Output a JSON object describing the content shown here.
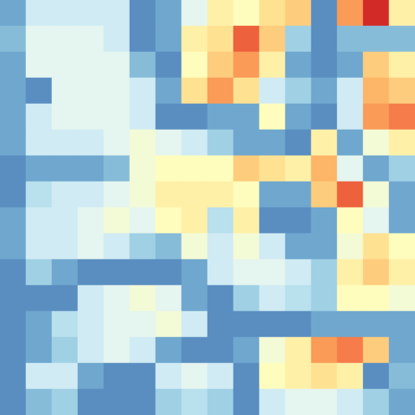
{
  "chart_data": {
    "type": "heatmap",
    "tick_labels": false,
    "grid": false,
    "color_range": [
      0,
      1
    ],
    "cells": [
      [
        0.1,
        0.3,
        0.3,
        0.3,
        0.3,
        0.05,
        0.1,
        0.35,
        0.5,
        0.45,
        0.55,
        0.6,
        0.05,
        0.7,
        0.9,
        0.5
      ],
      [
        0.15,
        0.35,
        0.35,
        0.35,
        0.3,
        0.05,
        0.1,
        0.5,
        0.55,
        0.8,
        0.6,
        0.2,
        0.05,
        0.15,
        0.15,
        0.15
      ],
      [
        0.1,
        0.35,
        0.35,
        0.35,
        0.35,
        0.15,
        0.05,
        0.45,
        0.6,
        0.7,
        0.5,
        0.1,
        0.05,
        0.1,
        0.6,
        0.5
      ],
      [
        0.1,
        0.05,
        0.35,
        0.35,
        0.35,
        0.3,
        0.1,
        0.55,
        0.7,
        0.55,
        0.3,
        0.2,
        0.1,
        0.3,
        0.65,
        0.6
      ],
      [
        0.1,
        0.3,
        0.35,
        0.35,
        0.35,
        0.3,
        0.05,
        0.05,
        0.1,
        0.1,
        0.45,
        0.1,
        0.05,
        0.3,
        0.7,
        0.75
      ],
      [
        0.1,
        0.3,
        0.3,
        0.3,
        0.35,
        0.4,
        0.35,
        0.3,
        0.2,
        0.1,
        0.1,
        0.05,
        0.5,
        0.1,
        0.4,
        0.5
      ],
      [
        0.05,
        0.1,
        0.1,
        0.1,
        0.15,
        0.4,
        0.45,
        0.45,
        0.45,
        0.6,
        0.55,
        0.5,
        0.65,
        0.35,
        0.1,
        0.2
      ],
      [
        0.05,
        0.25,
        0.3,
        0.3,
        0.35,
        0.4,
        0.5,
        0.5,
        0.5,
        0.45,
        0.1,
        0.1,
        0.6,
        0.8,
        0.4,
        0.1
      ],
      [
        0.1,
        0.3,
        0.3,
        0.35,
        0.4,
        0.35,
        0.45,
        0.5,
        0.25,
        0.5,
        0.05,
        0.05,
        0.1,
        0.45,
        0.35,
        0.1
      ],
      [
        0.1,
        0.3,
        0.3,
        0.35,
        0.3,
        0.2,
        0.15,
        0.4,
        0.3,
        0.4,
        0.3,
        0.1,
        0.1,
        0.4,
        0.55,
        0.45
      ],
      [
        0.05,
        0.2,
        0.1,
        0.05,
        0.05,
        0.05,
        0.05,
        0.1,
        0.3,
        0.35,
        0.35,
        0.3,
        0.2,
        0.5,
        0.6,
        0.5
      ],
      [
        0.05,
        0.05,
        0.05,
        0.3,
        0.35,
        0.4,
        0.35,
        0.1,
        0.05,
        0.2,
        0.3,
        0.25,
        0.2,
        0.45,
        0.45,
        0.4
      ],
      [
        0.05,
        0.1,
        0.25,
        0.3,
        0.35,
        0.35,
        0.4,
        0.3,
        0.05,
        0.05,
        0.05,
        0.05,
        0.1,
        0.1,
        0.1,
        0.1
      ],
      [
        0.05,
        0.1,
        0.2,
        0.3,
        0.35,
        0.3,
        0.1,
        0.05,
        0.05,
        0.1,
        0.4,
        0.5,
        0.7,
        0.75,
        0.6,
        0.1
      ],
      [
        0.05,
        0.3,
        0.3,
        0.1,
        0.05,
        0.05,
        0.3,
        0.35,
        0.3,
        0.05,
        0.45,
        0.5,
        0.55,
        0.5,
        0.05,
        0.15
      ],
      [
        0.05,
        0.15,
        0.2,
        0.05,
        0.05,
        0.05,
        0.2,
        0.25,
        0.2,
        0.05,
        0.3,
        0.35,
        0.35,
        0.3,
        0.2,
        0.1
      ]
    ]
  }
}
